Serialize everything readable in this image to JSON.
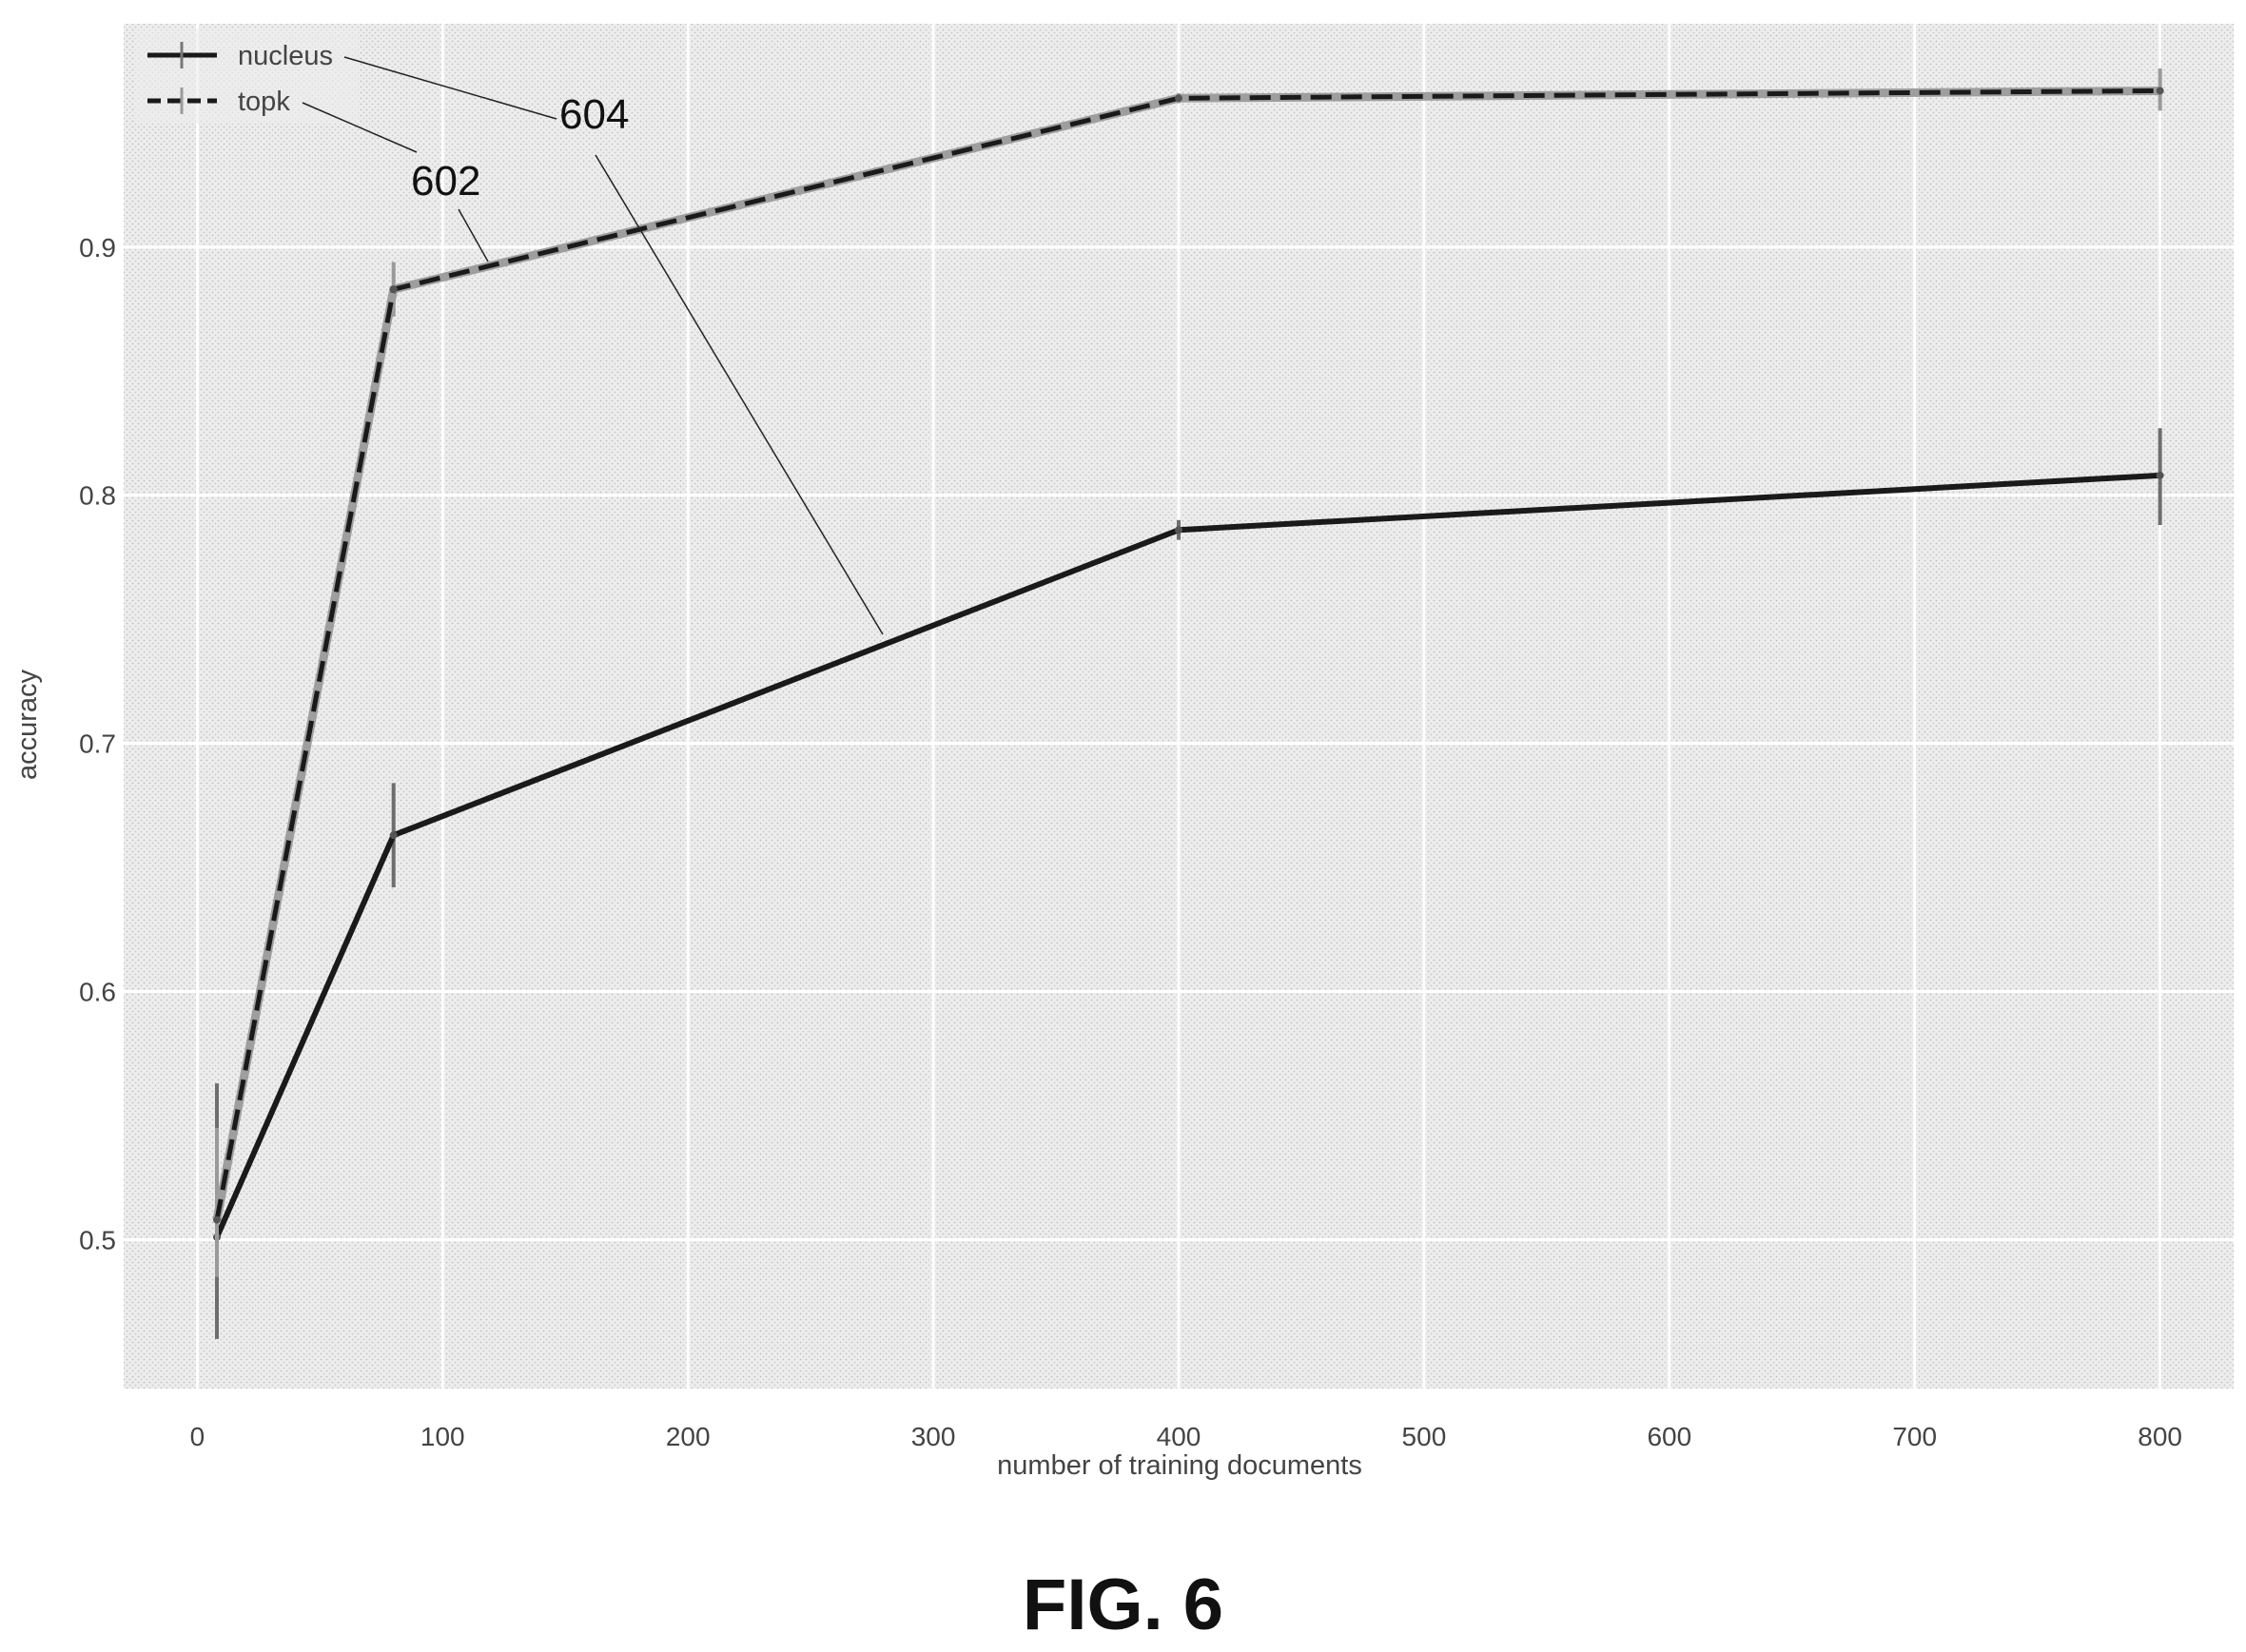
{
  "figure_caption": "FIG. 6",
  "chart_data": {
    "type": "line",
    "title": "",
    "xlabel": "number of training documents",
    "ylabel": "accuracy",
    "xlim": [
      -30,
      830
    ],
    "ylim": [
      0.44,
      0.99
    ],
    "xticks": [
      0,
      100,
      200,
      300,
      400,
      500,
      600,
      700,
      800
    ],
    "yticks": [
      0.5,
      0.6,
      0.7,
      0.8,
      0.9
    ],
    "grid": true,
    "legend_position": "top-left",
    "series": [
      {
        "name": "nucleus",
        "style": "solid",
        "color": "#1a1a1a",
        "x": [
          8,
          80,
          400,
          800
        ],
        "y": [
          0.501,
          0.663,
          0.786,
          0.808
        ],
        "err_low": [
          0.46,
          0.642,
          0.782,
          0.788
        ],
        "err_high": [
          0.563,
          0.684,
          0.79,
          0.827
        ]
      },
      {
        "name": "topk",
        "style": "dashed",
        "color": "#1a1a1a",
        "x": [
          8,
          80,
          400,
          800
        ],
        "y": [
          0.508,
          0.883,
          0.96,
          0.963
        ],
        "err_low": [
          0.485,
          0.872,
          0.958,
          0.955
        ],
        "err_high": [
          0.545,
          0.894,
          0.962,
          0.972
        ]
      }
    ],
    "annotations": [
      {
        "label": "602",
        "target_series": "topk"
      },
      {
        "label": "604",
        "target_series": "nucleus"
      }
    ]
  }
}
